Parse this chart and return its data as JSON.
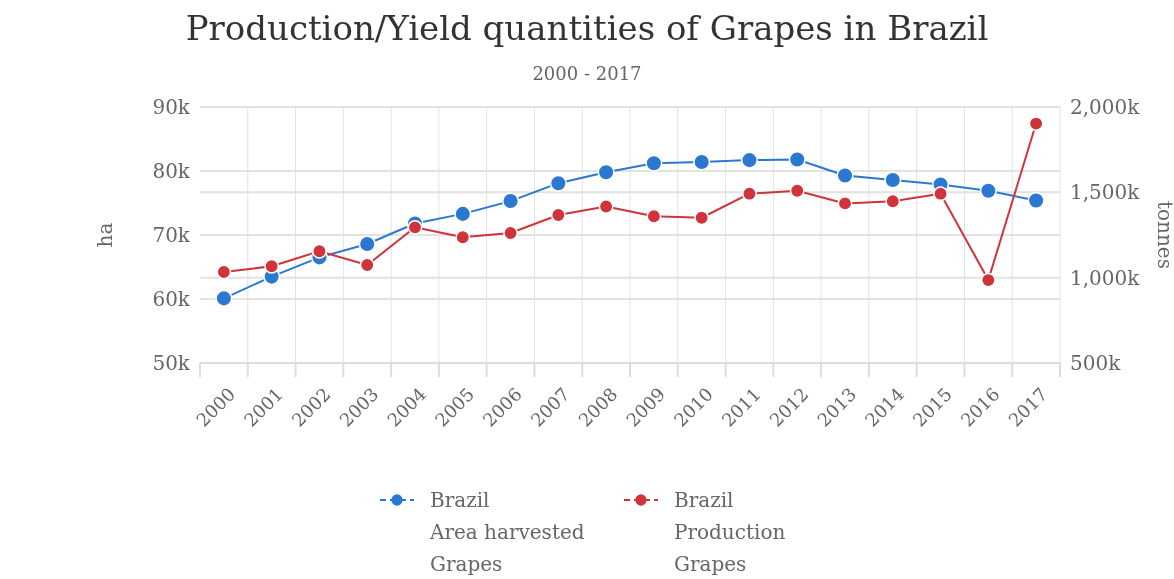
{
  "chart_data": {
    "type": "line",
    "title": "Production/Yield quantities of Grapes in Brazil",
    "subtitle": "2000 - 2017",
    "ylabel": "ha",
    "y2label": "tonnes",
    "categories": [
      "2000",
      "2001",
      "2002",
      "2003",
      "2004",
      "2005",
      "2006",
      "2007",
      "2008",
      "2009",
      "2010",
      "2011",
      "2012",
      "2013",
      "2014",
      "2015",
      "2016",
      "2017"
    ],
    "ylim": [
      50000,
      90000
    ],
    "yticks": [
      {
        "value": 50000,
        "label": "50k"
      },
      {
        "value": 60000,
        "label": "60k"
      },
      {
        "value": 70000,
        "label": "70k"
      },
      {
        "value": 80000,
        "label": "80k"
      },
      {
        "value": 90000,
        "label": "90k"
      }
    ],
    "y2lim": [
      500000,
      2000000
    ],
    "y2ticks": [
      {
        "value": 500000,
        "label": "500k"
      },
      {
        "value": 1000000,
        "label": "1,000k"
      },
      {
        "value": 1500000,
        "label": "1,500k"
      },
      {
        "value": 2000000,
        "label": "2,000k"
      }
    ],
    "grid": true,
    "legend": "bottom",
    "marker": "circle",
    "line_style": "solid",
    "series": [
      {
        "name": "Brazil\nArea harvested\nGrapes",
        "color": "#2a78d2",
        "axis": "y",
        "values": [
          60100,
          63500,
          66500,
          68600,
          71800,
          73300,
          75300,
          78100,
          79800,
          81200,
          81400,
          81700,
          81800,
          79300,
          78600,
          77900,
          76900,
          75400
        ]
      },
      {
        "name": "Brazil\nProduction\nGrapes",
        "color": "#d0343a",
        "axis": "y2",
        "values": [
          1033000,
          1067000,
          1155000,
          1074000,
          1295000,
          1237000,
          1262000,
          1367000,
          1417000,
          1360000,
          1351000,
          1492000,
          1509000,
          1435000,
          1448000,
          1492000,
          986000,
          1903000
        ]
      }
    ]
  }
}
